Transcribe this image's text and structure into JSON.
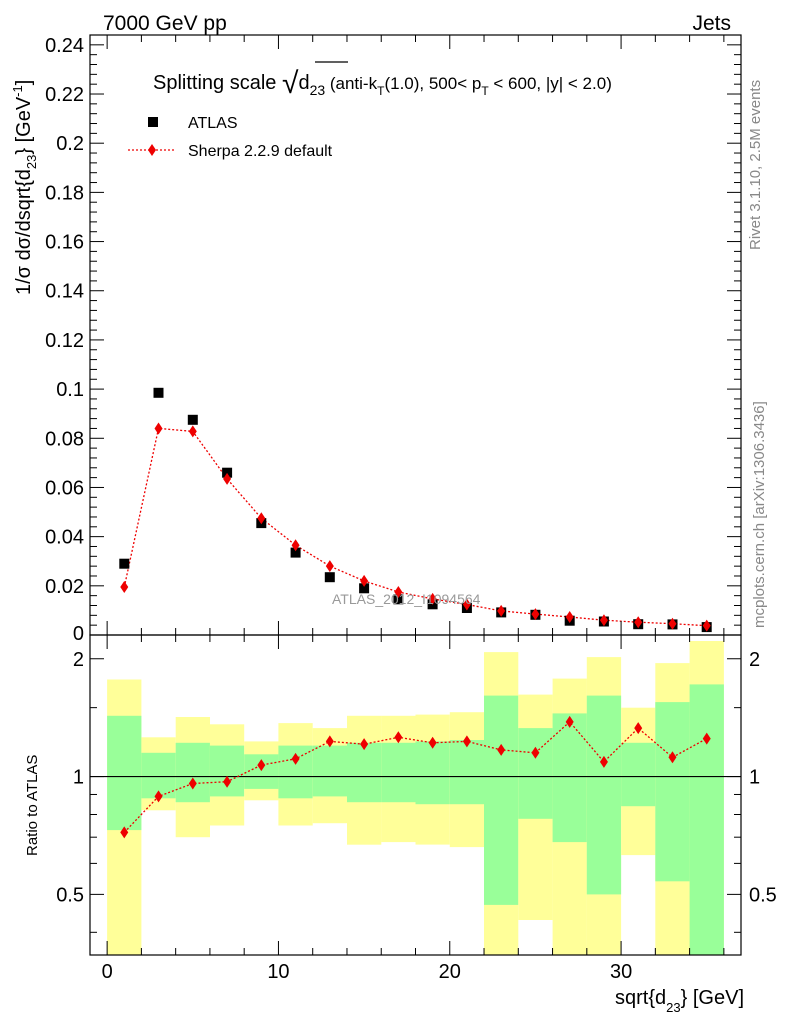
{
  "header": {
    "left": "7000 GeV pp",
    "right": "Jets"
  },
  "side_text": {
    "rivet": "Rivet 3.1.10,  2.5M events",
    "mcplots": "mcplots.cern.ch [arXiv:1306.3436]"
  },
  "colors": {
    "data": "#000000",
    "mc": "#ee0000",
    "band_inner": "#99ff99",
    "band_outer": "#ffff99"
  },
  "chart_data": [
    {
      "type": "scatter",
      "title": {
        "prefix": "Splitting scale ",
        "sqrt_symbol": "√",
        "var": "d",
        "var_sub": "23",
        "t1": " (anti-k",
        "t1_sub": "T",
        "t2": "(1.0), 500< p",
        "t2_sub": "T",
        "t3": " < 600, |y| < 2.0)"
      },
      "ylabel": {
        "main": "1/σ dσ/dsqrt{d",
        "sub": "23",
        "mid": "} [GeV",
        "sup": "-1",
        "end": "]"
      },
      "ylim": [
        0,
        0.244
      ],
      "xlim": [
        -1,
        37
      ],
      "yticks": [
        0.02,
        0.04,
        0.06,
        0.08,
        0.1,
        0.12,
        0.14,
        0.16,
        0.18,
        0.2,
        0.22,
        0.24
      ],
      "ytick_labels": [
        "0.02",
        "0.04",
        "0.06",
        "0.08",
        "0.1",
        "0.12",
        "0.14",
        "0.16",
        "0.18",
        "0.2",
        "0.22",
        "0.24"
      ],
      "zero_label": "0",
      "watermark": "ATLAS_2012_I1094564",
      "legend": [
        {
          "name": "ATLAS",
          "marker": "square"
        },
        {
          "name": "Sherpa 2.2.9 default",
          "marker": "diamond"
        }
      ],
      "x": [
        1,
        3,
        5,
        7,
        9,
        11,
        13,
        15,
        17,
        19,
        21,
        23,
        25,
        27,
        29,
        31,
        33,
        35
      ],
      "series": [
        {
          "name": "ATLAS",
          "values": [
            0.029,
            0.0985,
            0.0875,
            0.066,
            0.0455,
            0.0335,
            0.0235,
            0.019,
            0.0145,
            0.0125,
            0.011,
            0.0092,
            0.0082,
            0.0058,
            0.0055,
            0.0044,
            0.0043,
            0.0032
          ]
        },
        {
          "name": "Sherpa 2.2.9 default",
          "values": [
            0.0195,
            0.084,
            0.0828,
            0.0635,
            0.0475,
            0.0365,
            0.028,
            0.022,
            0.0175,
            0.0147,
            0.0124,
            0.0098,
            0.0085,
            0.0073,
            0.006,
            0.0052,
            0.0046,
            0.0038
          ]
        }
      ]
    },
    {
      "type": "ratio",
      "ylabel": "Ratio to ATLAS",
      "ylim": [
        0.35,
        2.3
      ],
      "yticks": [
        0.5,
        1,
        2
      ],
      "ytick_labels": [
        "0.5",
        "1",
        "2"
      ],
      "xticks": [
        0,
        10,
        20,
        30
      ],
      "xtick_labels": [
        "0",
        "10",
        "20",
        "30"
      ],
      "xlabel": {
        "main": "sqrt{d",
        "sub": "23",
        "end": "} [GeV]"
      },
      "bins": [
        {
          "lo": 0,
          "hi": 2,
          "in_lo": 0.73,
          "in_hi": 1.43,
          "out_lo": 0.3,
          "out_hi": 1.77
        },
        {
          "lo": 2,
          "hi": 4,
          "in_lo": 0.88,
          "in_hi": 1.15,
          "out_lo": 0.82,
          "out_hi": 1.26
        },
        {
          "lo": 4,
          "hi": 6,
          "in_lo": 0.86,
          "in_hi": 1.22,
          "out_lo": 0.7,
          "out_hi": 1.42
        },
        {
          "lo": 6,
          "hi": 8,
          "in_lo": 0.89,
          "in_hi": 1.2,
          "out_lo": 0.75,
          "out_hi": 1.36
        },
        {
          "lo": 8,
          "hi": 10,
          "in_lo": 0.93,
          "in_hi": 1.14,
          "out_lo": 0.87,
          "out_hi": 1.23
        },
        {
          "lo": 10,
          "hi": 12,
          "in_lo": 0.88,
          "in_hi": 1.2,
          "out_lo": 0.75,
          "out_hi": 1.37
        },
        {
          "lo": 12,
          "hi": 14,
          "in_lo": 0.89,
          "in_hi": 1.2,
          "out_lo": 0.76,
          "out_hi": 1.33
        },
        {
          "lo": 14,
          "hi": 16,
          "in_lo": 0.86,
          "in_hi": 1.22,
          "out_lo": 0.67,
          "out_hi": 1.43
        },
        {
          "lo": 16,
          "hi": 18,
          "in_lo": 0.86,
          "in_hi": 1.22,
          "out_lo": 0.68,
          "out_hi": 1.43
        },
        {
          "lo": 18,
          "hi": 20,
          "in_lo": 0.85,
          "in_hi": 1.23,
          "out_lo": 0.67,
          "out_hi": 1.44
        },
        {
          "lo": 20,
          "hi": 22,
          "in_lo": 0.85,
          "in_hi": 1.24,
          "out_lo": 0.66,
          "out_hi": 1.46
        },
        {
          "lo": 22,
          "hi": 24,
          "in_lo": 0.47,
          "in_hi": 1.61,
          "out_lo": 0.3,
          "out_hi": 2.08
        },
        {
          "lo": 24,
          "hi": 26,
          "in_lo": 0.78,
          "in_hi": 1.33,
          "out_lo": 0.43,
          "out_hi": 1.62
        },
        {
          "lo": 26,
          "hi": 28,
          "in_lo": 0.68,
          "in_hi": 1.45,
          "out_lo": 0.3,
          "out_hi": 1.78
        },
        {
          "lo": 28,
          "hi": 30,
          "in_lo": 0.5,
          "in_hi": 1.61,
          "out_lo": 0.3,
          "out_hi": 2.02
        },
        {
          "lo": 30,
          "hi": 32,
          "in_lo": 0.84,
          "in_hi": 1.22,
          "out_lo": 0.63,
          "out_hi": 1.5
        },
        {
          "lo": 32,
          "hi": 34,
          "in_lo": 0.54,
          "in_hi": 1.55,
          "out_lo": 0.3,
          "out_hi": 1.95
        },
        {
          "lo": 34,
          "hi": 36,
          "in_lo": 0.3,
          "in_hi": 1.72,
          "out_lo": 0.3,
          "out_hi": 2.22
        }
      ],
      "x": [
        1,
        3,
        5,
        7,
        9,
        11,
        13,
        15,
        17,
        19,
        21,
        23,
        25,
        27,
        29,
        31,
        33,
        35
      ],
      "mc_ratio": [
        0.72,
        0.89,
        0.96,
        0.97,
        1.07,
        1.11,
        1.23,
        1.21,
        1.26,
        1.22,
        1.23,
        1.17,
        1.15,
        1.38,
        1.09,
        1.33,
        1.12,
        1.25
      ]
    }
  ]
}
